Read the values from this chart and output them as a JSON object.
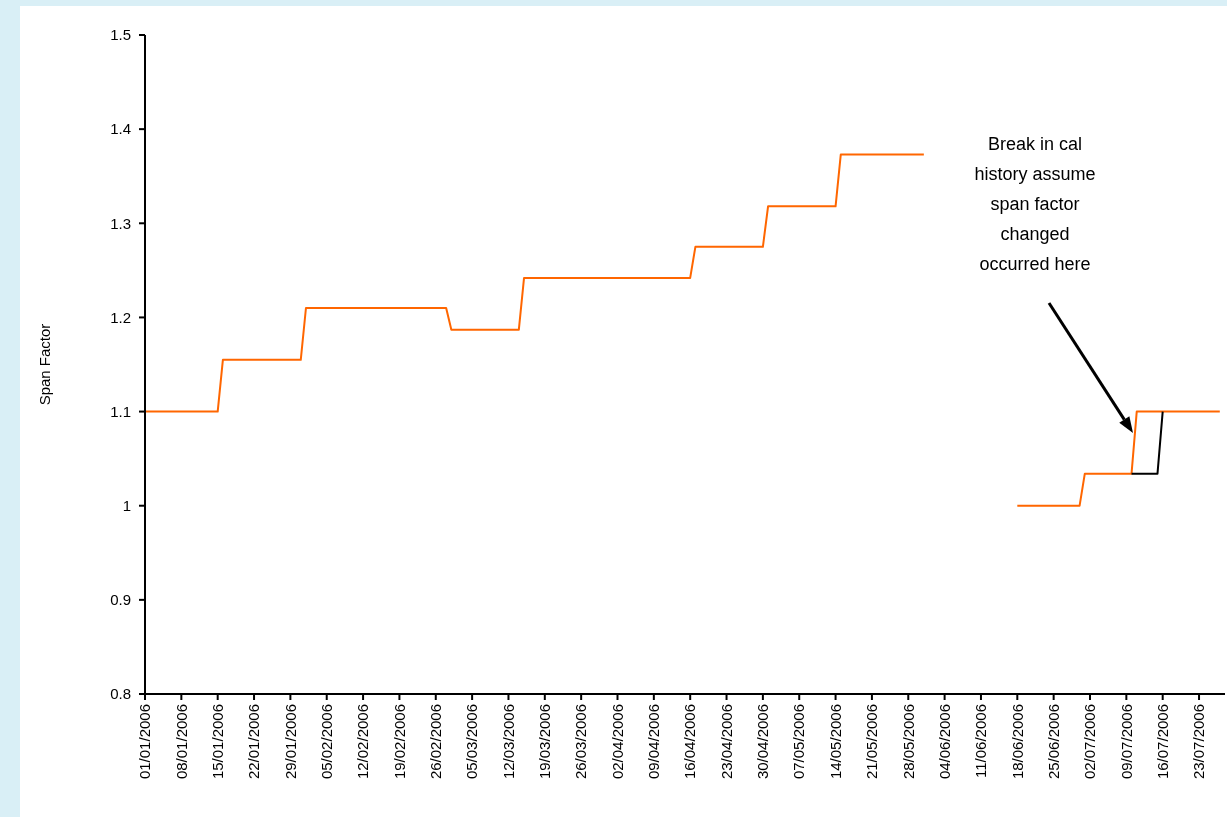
{
  "chart_data": {
    "type": "line",
    "ylabel": "Span Factor",
    "xlim": [
      "2006-01-01",
      "2006-07-28"
    ],
    "xticks": [
      {
        "value": "2006-01-01",
        "label": "01/01/2006"
      },
      {
        "value": "2006-01-08",
        "label": "08/01/2006"
      },
      {
        "value": "2006-01-15",
        "label": "15/01/2006"
      },
      {
        "value": "2006-01-22",
        "label": "22/01/2006"
      },
      {
        "value": "2006-01-29",
        "label": "29/01/2006"
      },
      {
        "value": "2006-02-05",
        "label": "05/02/2006"
      },
      {
        "value": "2006-02-12",
        "label": "12/02/2006"
      },
      {
        "value": "2006-02-19",
        "label": "19/02/2006"
      },
      {
        "value": "2006-02-26",
        "label": "26/02/2006"
      },
      {
        "value": "2006-03-05",
        "label": "05/03/2006"
      },
      {
        "value": "2006-03-12",
        "label": "12/03/2006"
      },
      {
        "value": "2006-03-19",
        "label": "19/03/2006"
      },
      {
        "value": "2006-03-26",
        "label": "26/03/2006"
      },
      {
        "value": "2006-04-02",
        "label": "02/04/2006"
      },
      {
        "value": "2006-04-09",
        "label": "09/04/2006"
      },
      {
        "value": "2006-04-16",
        "label": "16/04/2006"
      },
      {
        "value": "2006-04-23",
        "label": "23/04/2006"
      },
      {
        "value": "2006-04-30",
        "label": "30/04/2006"
      },
      {
        "value": "2006-05-07",
        "label": "07/05/2006"
      },
      {
        "value": "2006-05-14",
        "label": "14/05/2006"
      },
      {
        "value": "2006-05-21",
        "label": "21/05/2006"
      },
      {
        "value": "2006-05-28",
        "label": "28/05/2006"
      },
      {
        "value": "2006-06-04",
        "label": "04/06/2006"
      },
      {
        "value": "2006-06-11",
        "label": "11/06/2006"
      },
      {
        "value": "2006-06-18",
        "label": "18/06/2006"
      },
      {
        "value": "2006-06-25",
        "label": "25/06/2006"
      },
      {
        "value": "2006-07-02",
        "label": "02/07/2006"
      },
      {
        "value": "2006-07-09",
        "label": "09/07/2006"
      },
      {
        "value": "2006-07-16",
        "label": "16/07/2006"
      },
      {
        "value": "2006-07-23",
        "label": "23/07/2006"
      }
    ],
    "ylim": [
      0.8,
      1.5
    ],
    "yticks": [
      0.8,
      0.9,
      1,
      1.1,
      1.2,
      1.3,
      1.4,
      1.5
    ],
    "grid": false,
    "marker": "none",
    "line_style": "solid",
    "series": [
      {
        "color": "#ff6600",
        "x": [
          "2006-01-01",
          "2006-01-15",
          "2006-01-16",
          "2006-01-31",
          "2006-02-01",
          "2006-02-28",
          "2006-03-01",
          "2006-03-14",
          "2006-03-15",
          "2006-04-16",
          "2006-04-17",
          "2006-04-30",
          "2006-05-01",
          "2006-05-14",
          "2006-05-15",
          "2006-05-31",
          "2006-06-10",
          "2006-06-18",
          "2006-06-30",
          "2006-07-01",
          "2006-07-10",
          "2006-07-11",
          "2006-07-27"
        ],
        "values": [
          1.1,
          1.1,
          1.155,
          1.155,
          1.21,
          1.21,
          1.187,
          1.187,
          1.242,
          1.242,
          1.275,
          1.275,
          1.318,
          1.318,
          1.373,
          1.373,
          null,
          1.0,
          1.0,
          1.034,
          1.034,
          1.1,
          1.1
        ]
      },
      {
        "color": "#000000",
        "x": [
          "2006-07-10",
          "2006-07-15",
          "2006-07-16"
        ],
        "values": [
          1.034,
          1.034,
          1.1
        ]
      }
    ],
    "annotations": [
      "Break in cal history assume span factor changed occurred here"
    ]
  }
}
